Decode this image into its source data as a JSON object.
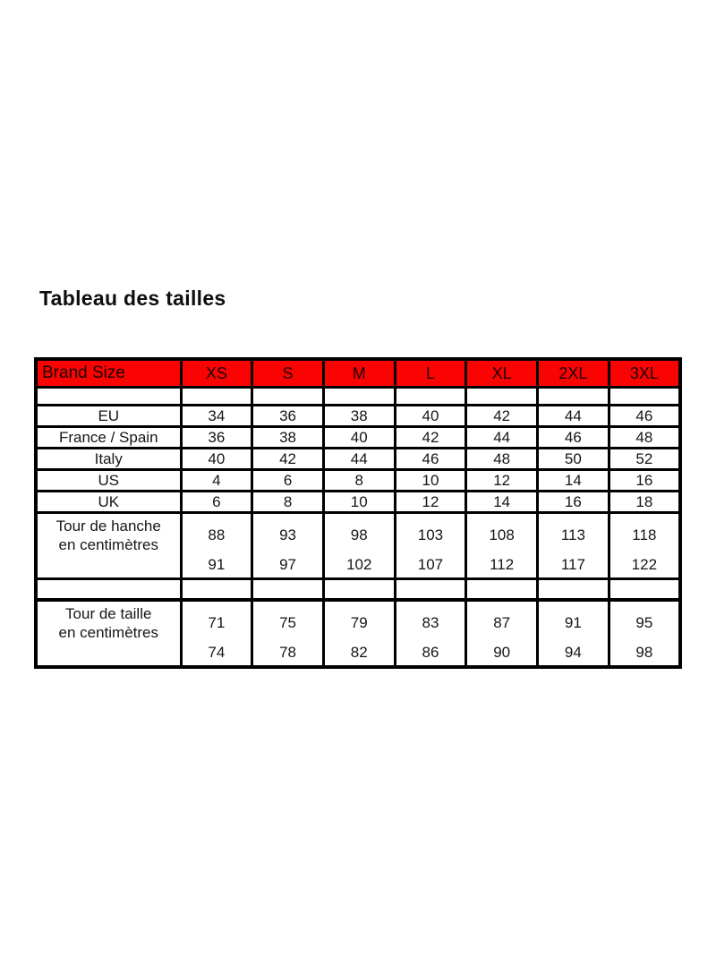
{
  "page": {
    "title": "Tableau des tailles"
  },
  "colors": {
    "header_bg": "#fa0303",
    "header_text": "#1c0000",
    "border": "#000000",
    "body_text": "#161616",
    "background": "#ffffff"
  },
  "size_table": {
    "header": {
      "brand_label": "Brand Size",
      "sizes": [
        "XS",
        "S",
        "M",
        "L",
        "XL",
        "2XL",
        "3XL"
      ]
    },
    "region_rows": [
      {
        "label": "EU",
        "values": [
          "34",
          "36",
          "38",
          "40",
          "42",
          "44",
          "46"
        ]
      },
      {
        "label": "France / Spain",
        "values": [
          "36",
          "38",
          "40",
          "42",
          "44",
          "46",
          "48"
        ]
      },
      {
        "label": "Italy",
        "values": [
          "40",
          "42",
          "44",
          "46",
          "48",
          "50",
          "52"
        ]
      },
      {
        "label": "US",
        "values": [
          "4",
          "6",
          "8",
          "10",
          "12",
          "14",
          "16"
        ]
      },
      {
        "label": "UK",
        "values": [
          "6",
          "8",
          "10",
          "12",
          "14",
          "16",
          "18"
        ]
      }
    ],
    "measurement_rows": [
      {
        "label_lines": [
          "Tour de hanche",
          "en centimètres"
        ],
        "values_min": [
          "88",
          "93",
          "98",
          "103",
          "108",
          "113",
          "118"
        ],
        "values_max": [
          "91",
          "97",
          "102",
          "107",
          "112",
          "117",
          "122"
        ]
      },
      {
        "label_lines": [
          "Tour de taille",
          "en centimètres"
        ],
        "values_min": [
          "71",
          "75",
          "79",
          "83",
          "87",
          "91",
          "95"
        ],
        "values_max": [
          "74",
          "78",
          "82",
          "86",
          "90",
          "94",
          "98"
        ]
      }
    ]
  }
}
